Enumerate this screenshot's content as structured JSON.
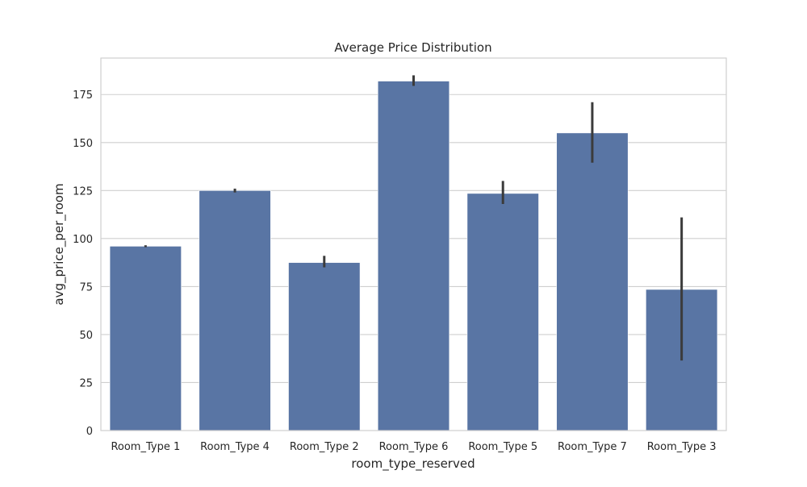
{
  "chart_data": {
    "type": "bar",
    "title": "Average Price Distribution",
    "xlabel": "room_type_reserved",
    "ylabel": "avg_price_per_room",
    "categories": [
      "Room_Type 1",
      "Room_Type 4",
      "Room_Type 2",
      "Room_Type 6",
      "Room_Type 5",
      "Room_Type 7",
      "Room_Type 3"
    ],
    "values": [
      96,
      125,
      87.5,
      182,
      123.5,
      155,
      73.5
    ],
    "error_low": [
      95.5,
      124,
      85,
      179.5,
      118,
      139.5,
      36.5
    ],
    "error_high": [
      96.5,
      126,
      91,
      185,
      130,
      171,
      111
    ],
    "yticks": [
      0,
      25,
      50,
      75,
      100,
      125,
      150,
      175
    ],
    "ylim": [
      0,
      194
    ],
    "grid": true,
    "colors": {
      "bar": "#5975a4",
      "error": "#3b3b3b",
      "grid": "#cfcfcf",
      "axes_edge": "#cfcfcf"
    }
  }
}
